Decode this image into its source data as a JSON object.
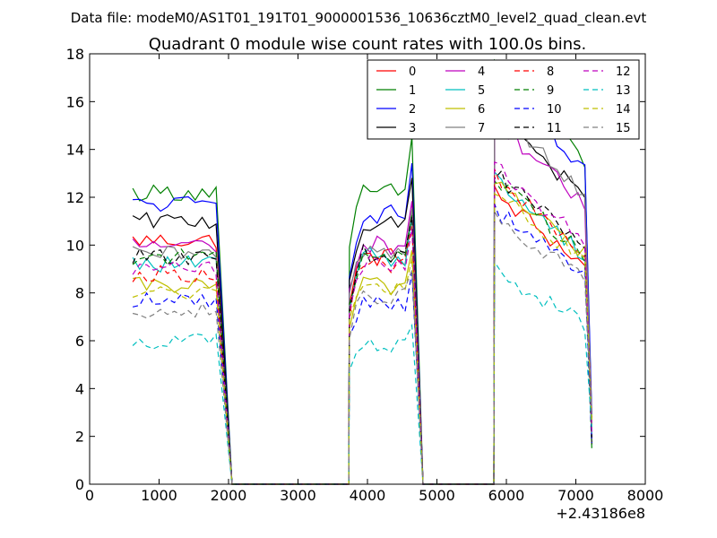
{
  "chart_data": {
    "type": "line",
    "suptitle": "Data file: modeM0/AS1T01_191T01_9000001536_10636cztM0_level2_quad_clean.evt",
    "title": "Quadrant 0 module wise count rates with 100.0s bins.",
    "xlabel": "",
    "ylabel": "",
    "x_offset_label": "+2.43186e8",
    "xlim": [
      0,
      8000
    ],
    "ylim": [
      0,
      18
    ],
    "xticks": [
      0,
      1000,
      2000,
      3000,
      4000,
      5000,
      6000,
      7000,
      8000
    ],
    "xtick_labels": [
      "0",
      "1000",
      "2000",
      "3000",
      "4000",
      "5000",
      "6000",
      "7000",
      "8000"
    ],
    "yticks": [
      0,
      2,
      4,
      6,
      8,
      10,
      12,
      14,
      16,
      18
    ],
    "ytick_labels": [
      "0",
      "2",
      "4",
      "6",
      "8",
      "10",
      "12",
      "14",
      "16",
      "18"
    ],
    "grid": false,
    "legend_position": "top-right",
    "segments": [
      {
        "x0": 620,
        "n": 13,
        "drop_to": 2050
      },
      {
        "x0": 3740,
        "n": 10,
        "drop_to": 4800
      },
      {
        "x0": 5830,
        "n": 14,
        "drop_to": 7230
      }
    ],
    "series": [
      {
        "name": "0",
        "color": "#ff0000",
        "dashed": false,
        "levels": [
          10.2,
          9.5,
          9.5
        ]
      },
      {
        "name": "1",
        "color": "#008000",
        "dashed": false,
        "levels": [
          12.2,
          12.2,
          14.0
        ]
      },
      {
        "name": "2",
        "color": "#0000ff",
        "dashed": false,
        "levels": [
          11.7,
          11.3,
          13.5
        ]
      },
      {
        "name": "3",
        "color": "#000000",
        "dashed": false,
        "levels": [
          11.0,
          10.8,
          12.3
        ]
      },
      {
        "name": "4",
        "color": "#bf00bf",
        "dashed": false,
        "levels": [
          10.0,
          10.0,
          12.0
        ]
      },
      {
        "name": "5",
        "color": "#00bfbf",
        "dashed": false,
        "levels": [
          9.2,
          9.5,
          10.0
        ]
      },
      {
        "name": "6",
        "color": "#bfbf00",
        "dashed": false,
        "levels": [
          8.3,
          8.3,
          10.0
        ]
      },
      {
        "name": "7",
        "color": "#808080",
        "dashed": false,
        "levels": [
          9.6,
          9.8,
          12.5
        ]
      },
      {
        "name": "8",
        "color": "#ff0000",
        "dashed": true,
        "levels": [
          8.8,
          9.2,
          10.0
        ]
      },
      {
        "name": "9",
        "color": "#008000",
        "dashed": true,
        "levels": [
          9.5,
          9.6,
          10.0
        ]
      },
      {
        "name": "10",
        "color": "#0000ff",
        "dashed": true,
        "levels": [
          7.7,
          7.6,
          9.0
        ]
      },
      {
        "name": "11",
        "color": "#000000",
        "dashed": true,
        "levels": [
          9.5,
          9.6,
          10.2
        ]
      },
      {
        "name": "12",
        "color": "#bf00bf",
        "dashed": true,
        "levels": [
          9.0,
          9.2,
          10.5
        ]
      },
      {
        "name": "13",
        "color": "#00bfbf",
        "dashed": true,
        "levels": [
          6.0,
          5.8,
          7.0
        ]
      },
      {
        "name": "14",
        "color": "#bfbf00",
        "dashed": true,
        "levels": [
          8.0,
          8.2,
          9.6
        ]
      },
      {
        "name": "15",
        "color": "#808080",
        "dashed": true,
        "levels": [
          7.3,
          7.8,
          8.8
        ]
      }
    ]
  }
}
